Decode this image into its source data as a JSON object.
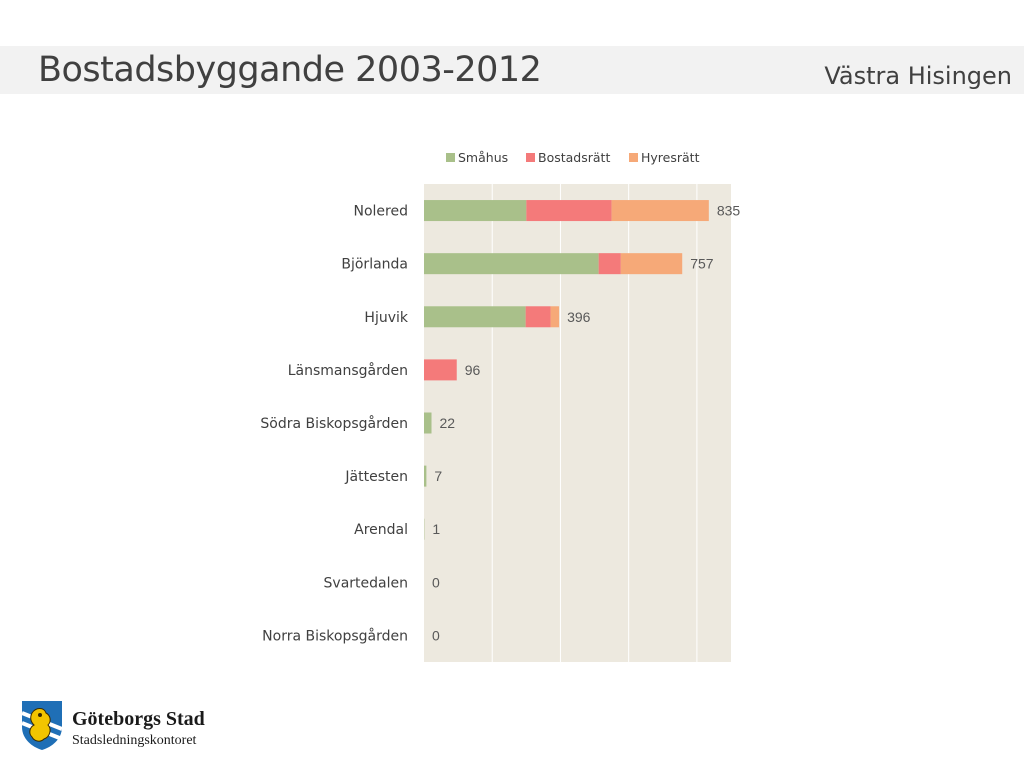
{
  "header": {
    "title": "Bostadsbyggande 2003-2012",
    "area": "Västra Hisingen"
  },
  "footer": {
    "org_name": "Göteborgs Stad",
    "org_unit": "Stadsledningskontoret"
  },
  "colors": {
    "plot_background": "#ede9df",
    "gridline": "#ffffff",
    "title_band": "#f2f2f2",
    "logo_blue": "#1f6fb6",
    "logo_yellow": "#f2c500"
  },
  "chart_data": {
    "type": "bar",
    "orientation": "horizontal",
    "stacked": true,
    "categories": [
      "Nolered",
      "Björlanda",
      "Hjuvik",
      "Länsmansgården",
      "Södra Biskopsgården",
      "Jättesten",
      "Arendal",
      "Svartedalen",
      "Norra Biskopsgården"
    ],
    "series": [
      {
        "name": "Småhus",
        "color": "#a9c08a",
        "values": [
          300,
          512,
          298,
          0,
          22,
          7,
          1,
          0,
          0
        ]
      },
      {
        "name": "Bostadsrätt",
        "color": "#f47a7a",
        "values": [
          250,
          65,
          73,
          96,
          0,
          0,
          0,
          0,
          0
        ]
      },
      {
        "name": "Hyresrätt",
        "color": "#f6a978",
        "values": [
          285,
          180,
          25,
          0,
          0,
          0,
          0,
          0,
          0
        ]
      }
    ],
    "totals": [
      "835",
      "757",
      "396",
      "96",
      "22",
      "7",
      "1",
      "0",
      "0"
    ],
    "xlim": [
      0,
      900
    ],
    "grid": true,
    "legend": "top"
  }
}
